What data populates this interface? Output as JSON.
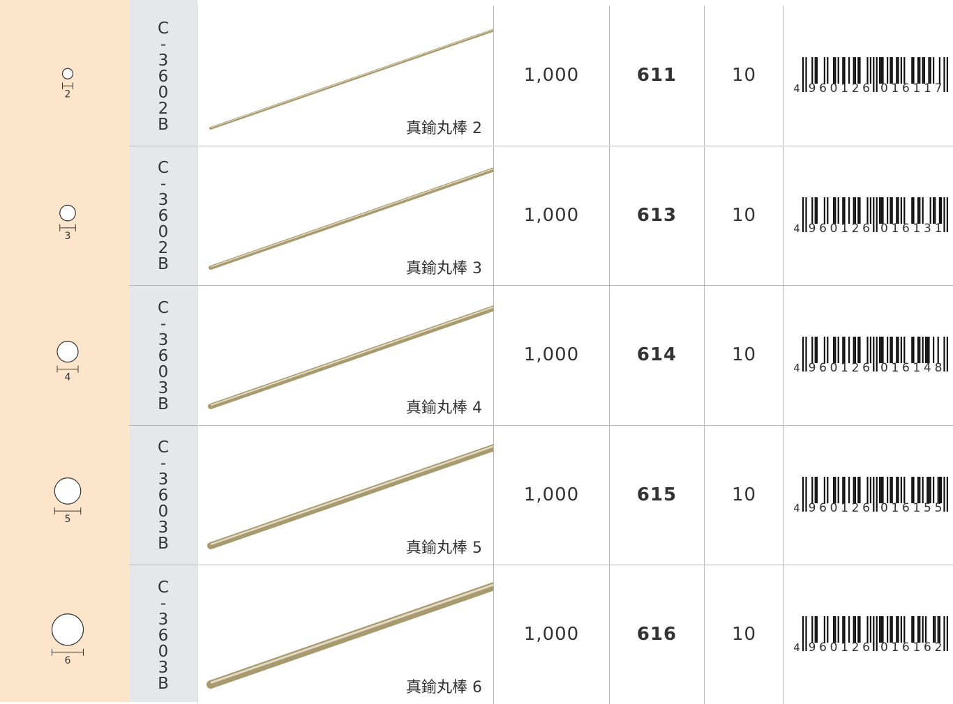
{
  "rows": [
    {
      "diameter": 2,
      "material": "C-3602B",
      "name": "真鍮丸棒 2",
      "length": "1,000",
      "code": 611,
      "qty": 10,
      "barcode": {
        "lead": "4",
        "left": "960126",
        "right": "016117"
      }
    },
    {
      "diameter": 3,
      "material": "C-3602B",
      "name": "真鍮丸棒 3",
      "length": "1,000",
      "code": 613,
      "qty": 10,
      "barcode": {
        "lead": "4",
        "left": "960126",
        "right": "016131"
      }
    },
    {
      "diameter": 4,
      "material": "C-3603B",
      "name": "真鍮丸棒 4",
      "length": "1,000",
      "code": 614,
      "qty": 10,
      "barcode": {
        "lead": "4",
        "left": "960126",
        "right": "016148"
      }
    },
    {
      "diameter": 5,
      "material": "C-3603B",
      "name": "真鍮丸棒 5",
      "length": "1,000",
      "code": 615,
      "qty": 10,
      "barcode": {
        "lead": "4",
        "left": "960126",
        "right": "016155"
      }
    },
    {
      "diameter": 6,
      "material": "C-3603B",
      "name": "真鍮丸棒 6",
      "length": "1,000",
      "code": 616,
      "qty": 10,
      "barcode": {
        "lead": "4",
        "left": "960126",
        "right": "016162"
      }
    }
  ]
}
